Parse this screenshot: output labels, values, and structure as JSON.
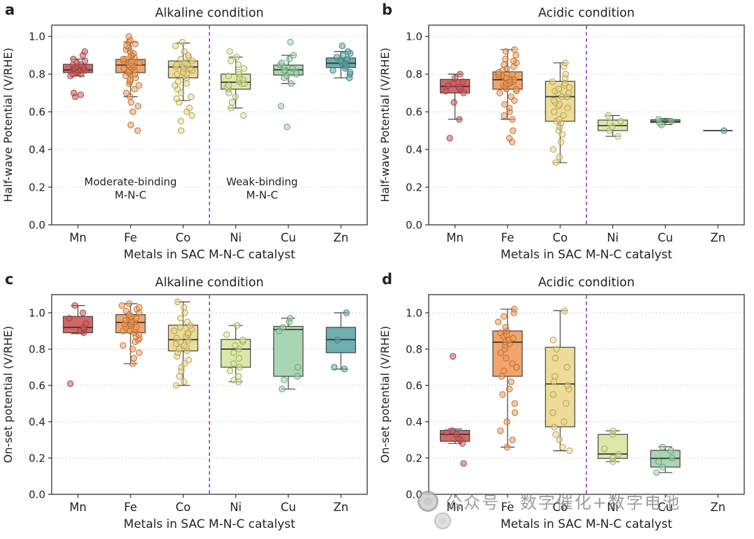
{
  "watermark": {
    "text": "公众号 · 数字催化+数字电池"
  },
  "metal_colors": {
    "Mn": {
      "fill": "#cd5a5a",
      "stroke": "#93403d"
    },
    "Fe": {
      "fill": "#f09d5f",
      "stroke": "#b06a2e"
    },
    "Co": {
      "fill": "#ecd98e",
      "stroke": "#a99a4e"
    },
    "Ni": {
      "fill": "#d9e6a3",
      "stroke": "#93a45c"
    },
    "Cu": {
      "fill": "#a3d1ad",
      "stroke": "#5f9a6e"
    },
    "Zn": {
      "fill": "#63a8a7",
      "stroke": "#3c7674"
    }
  },
  "chart_data": [
    {
      "id": "a",
      "panel_label": "a",
      "type": "box",
      "title": "Alkaline condition",
      "title_color": "#1616cc",
      "xlabel": "Metals in SAC M-N-C catalyst",
      "ylabel": "Half-wave Potential (V/RHE)",
      "categories": [
        "Mn",
        "Fe",
        "Co",
        "Ni",
        "Cu",
        "Zn"
      ],
      "yticks": [
        0.0,
        0.2,
        0.4,
        0.6,
        0.8,
        1.0
      ],
      "ylim": [
        0,
        1.06
      ],
      "grid": true,
      "divider_after": 2,
      "annotations": [
        {
          "lines": [
            "Moderate-binding",
            "M-N-C"
          ],
          "x": 1.0,
          "y": 0.21
        },
        {
          "lines": [
            "Weak-binding",
            "M-N-C"
          ],
          "x": 3.5,
          "y": 0.21
        }
      ],
      "boxes": [
        {
          "category": "Mn",
          "stats": {
            "whislo": 0.79,
            "q1": 0.808,
            "med": 0.822,
            "q3": 0.852,
            "whishi": 0.88
          },
          "points": [
            0.68,
            0.69,
            0.7,
            0.79,
            0.8,
            0.8,
            0.81,
            0.81,
            0.82,
            0.82,
            0.82,
            0.83,
            0.83,
            0.83,
            0.84,
            0.84,
            0.85,
            0.85,
            0.86,
            0.87,
            0.88,
            0.9,
            0.92
          ]
        },
        {
          "category": "Fe",
          "stats": {
            "whislo": 0.68,
            "q1": 0.808,
            "med": 0.848,
            "q3": 0.878,
            "whishi": 0.97
          },
          "points": [
            0.5,
            0.53,
            0.6,
            0.63,
            0.65,
            0.68,
            0.7,
            0.72,
            0.74,
            0.75,
            0.76,
            0.77,
            0.78,
            0.79,
            0.8,
            0.8,
            0.81,
            0.81,
            0.82,
            0.82,
            0.83,
            0.83,
            0.84,
            0.84,
            0.85,
            0.85,
            0.86,
            0.86,
            0.87,
            0.87,
            0.88,
            0.88,
            0.89,
            0.9,
            0.9,
            0.91,
            0.92,
            0.93,
            0.94,
            0.95,
            0.96,
            0.97,
            0.98,
            1.0
          ]
        },
        {
          "category": "Co",
          "stats": {
            "whislo": 0.66,
            "q1": 0.78,
            "med": 0.838,
            "q3": 0.87,
            "whishi": 0.965
          },
          "points": [
            0.5,
            0.55,
            0.58,
            0.6,
            0.62,
            0.65,
            0.67,
            0.68,
            0.7,
            0.72,
            0.74,
            0.75,
            0.76,
            0.78,
            0.79,
            0.8,
            0.8,
            0.81,
            0.82,
            0.82,
            0.83,
            0.83,
            0.84,
            0.84,
            0.85,
            0.85,
            0.86,
            0.87,
            0.88,
            0.89,
            0.9,
            0.92,
            0.95,
            0.97
          ]
        },
        {
          "category": "Ni",
          "stats": {
            "whislo": 0.62,
            "q1": 0.72,
            "med": 0.757,
            "q3": 0.8,
            "whishi": 0.89
          },
          "points": [
            0.58,
            0.62,
            0.65,
            0.68,
            0.7,
            0.72,
            0.73,
            0.74,
            0.75,
            0.75,
            0.76,
            0.77,
            0.78,
            0.79,
            0.8,
            0.81,
            0.83,
            0.85,
            0.87,
            0.89,
            0.92
          ]
        },
        {
          "category": "Cu",
          "stats": {
            "whislo": 0.75,
            "q1": 0.795,
            "med": 0.823,
            "q3": 0.848,
            "whishi": 0.9
          },
          "points": [
            0.52,
            0.63,
            0.75,
            0.78,
            0.79,
            0.8,
            0.81,
            0.82,
            0.82,
            0.83,
            0.84,
            0.85,
            0.86,
            0.88,
            0.9,
            0.97
          ]
        },
        {
          "category": "Zn",
          "stats": {
            "whislo": 0.78,
            "q1": 0.835,
            "med": 0.858,
            "q3": 0.886,
            "whishi": 0.92
          },
          "points": [
            0.78,
            0.8,
            0.81,
            0.82,
            0.83,
            0.84,
            0.85,
            0.86,
            0.86,
            0.87,
            0.88,
            0.89,
            0.9,
            0.91,
            0.92,
            0.95
          ]
        }
      ]
    },
    {
      "id": "b",
      "panel_label": "b",
      "type": "box",
      "title": "Acidic condition",
      "title_color": "#d42020",
      "xlabel": "Metals in SAC M-N-C catalyst",
      "ylabel": "Half-wave Potential (V/RHE)",
      "categories": [
        "Mn",
        "Fe",
        "Co",
        "Ni",
        "Cu",
        "Zn"
      ],
      "yticks": [
        0.0,
        0.2,
        0.4,
        0.6,
        0.8,
        1.0
      ],
      "ylim": [
        0,
        1.06
      ],
      "grid": true,
      "divider_after": 2,
      "annotations": [],
      "boxes": [
        {
          "category": "Mn",
          "stats": {
            "whislo": 0.56,
            "q1": 0.7,
            "med": 0.735,
            "q3": 0.772,
            "whishi": 0.8
          },
          "points": [
            0.46,
            0.56,
            0.65,
            0.7,
            0.71,
            0.72,
            0.73,
            0.74,
            0.75,
            0.76,
            0.78,
            0.8
          ]
        },
        {
          "category": "Fe",
          "stats": {
            "whislo": 0.56,
            "q1": 0.72,
            "med": 0.77,
            "q3": 0.812,
            "whishi": 0.93
          },
          "points": [
            0.44,
            0.46,
            0.5,
            0.56,
            0.58,
            0.6,
            0.62,
            0.64,
            0.66,
            0.68,
            0.7,
            0.71,
            0.72,
            0.72,
            0.73,
            0.74,
            0.74,
            0.75,
            0.75,
            0.76,
            0.76,
            0.77,
            0.77,
            0.78,
            0.78,
            0.79,
            0.79,
            0.8,
            0.8,
            0.81,
            0.82,
            0.83,
            0.84,
            0.85,
            0.86,
            0.87,
            0.88,
            0.9,
            0.92,
            0.93
          ]
        },
        {
          "category": "Co",
          "stats": {
            "whislo": 0.33,
            "q1": 0.55,
            "med": 0.68,
            "q3": 0.762,
            "whishi": 0.86
          },
          "points": [
            0.33,
            0.36,
            0.4,
            0.44,
            0.48,
            0.5,
            0.52,
            0.54,
            0.55,
            0.56,
            0.58,
            0.6,
            0.62,
            0.63,
            0.64,
            0.65,
            0.66,
            0.68,
            0.68,
            0.7,
            0.7,
            0.71,
            0.72,
            0.73,
            0.74,
            0.75,
            0.76,
            0.78,
            0.8,
            0.84,
            0.86
          ]
        },
        {
          "category": "Ni",
          "stats": {
            "whislo": 0.47,
            "q1": 0.5,
            "med": 0.527,
            "q3": 0.556,
            "whishi": 0.58
          },
          "points": [
            0.47,
            0.5,
            0.52,
            0.54,
            0.55,
            0.58
          ]
        },
        {
          "category": "Cu",
          "stats": {
            "whislo": 0.532,
            "q1": 0.543,
            "med": 0.55,
            "q3": 0.558,
            "whishi": 0.565
          },
          "points": [
            0.53,
            0.54,
            0.55,
            0.56
          ]
        },
        {
          "category": "Zn",
          "stats": {
            "whislo": 0.5,
            "q1": 0.5,
            "med": 0.5,
            "q3": 0.5,
            "whishi": 0.5
          },
          "points": [
            0.5
          ]
        }
      ]
    },
    {
      "id": "c",
      "panel_label": "c",
      "type": "box",
      "title": "Alkaline condition",
      "title_color": "#1616cc",
      "xlabel": "Metals in SAC M-N-C catalyst",
      "ylabel": "On-set potential (V/RHE)",
      "categories": [
        "Mn",
        "Fe",
        "Co",
        "Ni",
        "Cu",
        "Zn"
      ],
      "yticks": [
        0.0,
        0.2,
        0.4,
        0.6,
        0.8,
        1.0
      ],
      "ylim": [
        0,
        1.1
      ],
      "grid": true,
      "divider_after": 2,
      "annotations": [],
      "boxes": [
        {
          "category": "Mn",
          "stats": {
            "whislo": 0.885,
            "q1": 0.89,
            "med": 0.92,
            "q3": 0.98,
            "whishi": 1.04
          },
          "points": [
            0.61,
            0.89,
            0.9,
            0.91,
            0.92,
            0.94,
            0.97,
            1.0,
            1.04
          ]
        },
        {
          "category": "Fe",
          "stats": {
            "whislo": 0.72,
            "q1": 0.89,
            "med": 0.947,
            "q3": 0.99,
            "whishi": 1.05
          },
          "points": [
            0.72,
            0.75,
            0.78,
            0.8,
            0.82,
            0.84,
            0.85,
            0.86,
            0.87,
            0.88,
            0.89,
            0.9,
            0.9,
            0.91,
            0.92,
            0.92,
            0.93,
            0.93,
            0.94,
            0.94,
            0.95,
            0.95,
            0.96,
            0.96,
            0.97,
            0.97,
            0.98,
            0.98,
            0.99,
            1.0,
            1.01,
            1.02,
            1.03,
            1.04,
            1.05
          ]
        },
        {
          "category": "Co",
          "stats": {
            "whislo": 0.6,
            "q1": 0.79,
            "med": 0.852,
            "q3": 0.932,
            "whishi": 1.06
          },
          "points": [
            0.6,
            0.62,
            0.65,
            0.68,
            0.7,
            0.72,
            0.74,
            0.76,
            0.78,
            0.79,
            0.8,
            0.81,
            0.82,
            0.83,
            0.84,
            0.85,
            0.86,
            0.87,
            0.88,
            0.89,
            0.9,
            0.91,
            0.92,
            0.93,
            0.95,
            0.97,
            1.0,
            1.03,
            1.06
          ]
        },
        {
          "category": "Ni",
          "stats": {
            "whislo": 0.62,
            "q1": 0.7,
            "med": 0.8,
            "q3": 0.853,
            "whishi": 0.93
          },
          "points": [
            0.62,
            0.63,
            0.65,
            0.68,
            0.7,
            0.72,
            0.75,
            0.78,
            0.8,
            0.82,
            0.84,
            0.85,
            0.88,
            0.93
          ]
        },
        {
          "category": "Cu",
          "stats": {
            "whislo": 0.58,
            "q1": 0.65,
            "med": 0.908,
            "q3": 0.925,
            "whishi": 0.97
          },
          "points": [
            0.58,
            0.63,
            0.65,
            0.7,
            0.9,
            0.92,
            0.95,
            0.97
          ]
        },
        {
          "category": "Zn",
          "stats": {
            "whislo": 0.69,
            "q1": 0.78,
            "med": 0.852,
            "q3": 0.92,
            "whishi": 1.0
          },
          "points": [
            0.69,
            0.7,
            0.85,
            1.0
          ]
        }
      ]
    },
    {
      "id": "d",
      "panel_label": "d",
      "type": "box",
      "title": "Acidic condition",
      "title_color": "#d42020",
      "xlabel": "Metals in SAC M-N-C catalyst",
      "ylabel": "On-set potential (V/RHE)",
      "categories": [
        "Mn",
        "Fe",
        "Co",
        "Ni",
        "Cu",
        "Zn"
      ],
      "yticks": [
        0.0,
        0.2,
        0.4,
        0.6,
        0.8,
        1.0
      ],
      "ylim": [
        0,
        1.1
      ],
      "grid": true,
      "divider_after": 2,
      "annotations": [],
      "boxes": [
        {
          "category": "Mn",
          "stats": {
            "whislo": 0.28,
            "q1": 0.292,
            "med": 0.33,
            "q3": 0.352,
            "whishi": 0.36
          },
          "points": [
            0.17,
            0.28,
            0.3,
            0.31,
            0.33,
            0.34,
            0.35,
            0.76
          ]
        },
        {
          "category": "Fe",
          "stats": {
            "whislo": 0.26,
            "q1": 0.65,
            "med": 0.838,
            "q3": 0.9,
            "whishi": 1.02
          },
          "points": [
            0.26,
            0.3,
            0.35,
            0.4,
            0.45,
            0.5,
            0.55,
            0.58,
            0.62,
            0.65,
            0.68,
            0.7,
            0.72,
            0.75,
            0.78,
            0.8,
            0.82,
            0.83,
            0.84,
            0.85,
            0.86,
            0.87,
            0.88,
            0.89,
            0.9,
            0.92,
            0.95,
            0.98,
            1.0,
            1.02
          ]
        },
        {
          "category": "Co",
          "stats": {
            "whislo": 0.24,
            "q1": 0.372,
            "med": 0.608,
            "q3": 0.81,
            "whishi": 1.012
          },
          "points": [
            0.24,
            0.26,
            0.3,
            0.33,
            0.37,
            0.4,
            0.45,
            0.5,
            0.55,
            0.58,
            0.6,
            0.62,
            0.65,
            0.7,
            0.75,
            0.8,
            0.85,
            1.01
          ]
        },
        {
          "category": "Ni",
          "stats": {
            "whislo": 0.18,
            "q1": 0.198,
            "med": 0.222,
            "q3": 0.33,
            "whishi": 0.35
          },
          "points": [
            0.18,
            0.2,
            0.22,
            0.25,
            0.33,
            0.35
          ]
        },
        {
          "category": "Cu",
          "stats": {
            "whislo": 0.12,
            "q1": 0.15,
            "med": 0.198,
            "q3": 0.242,
            "whishi": 0.262
          },
          "points": [
            0.12,
            0.15,
            0.18,
            0.2,
            0.24,
            0.26
          ]
        },
        {
          "category": "Zn",
          "stats": null,
          "points": []
        }
      ]
    }
  ]
}
